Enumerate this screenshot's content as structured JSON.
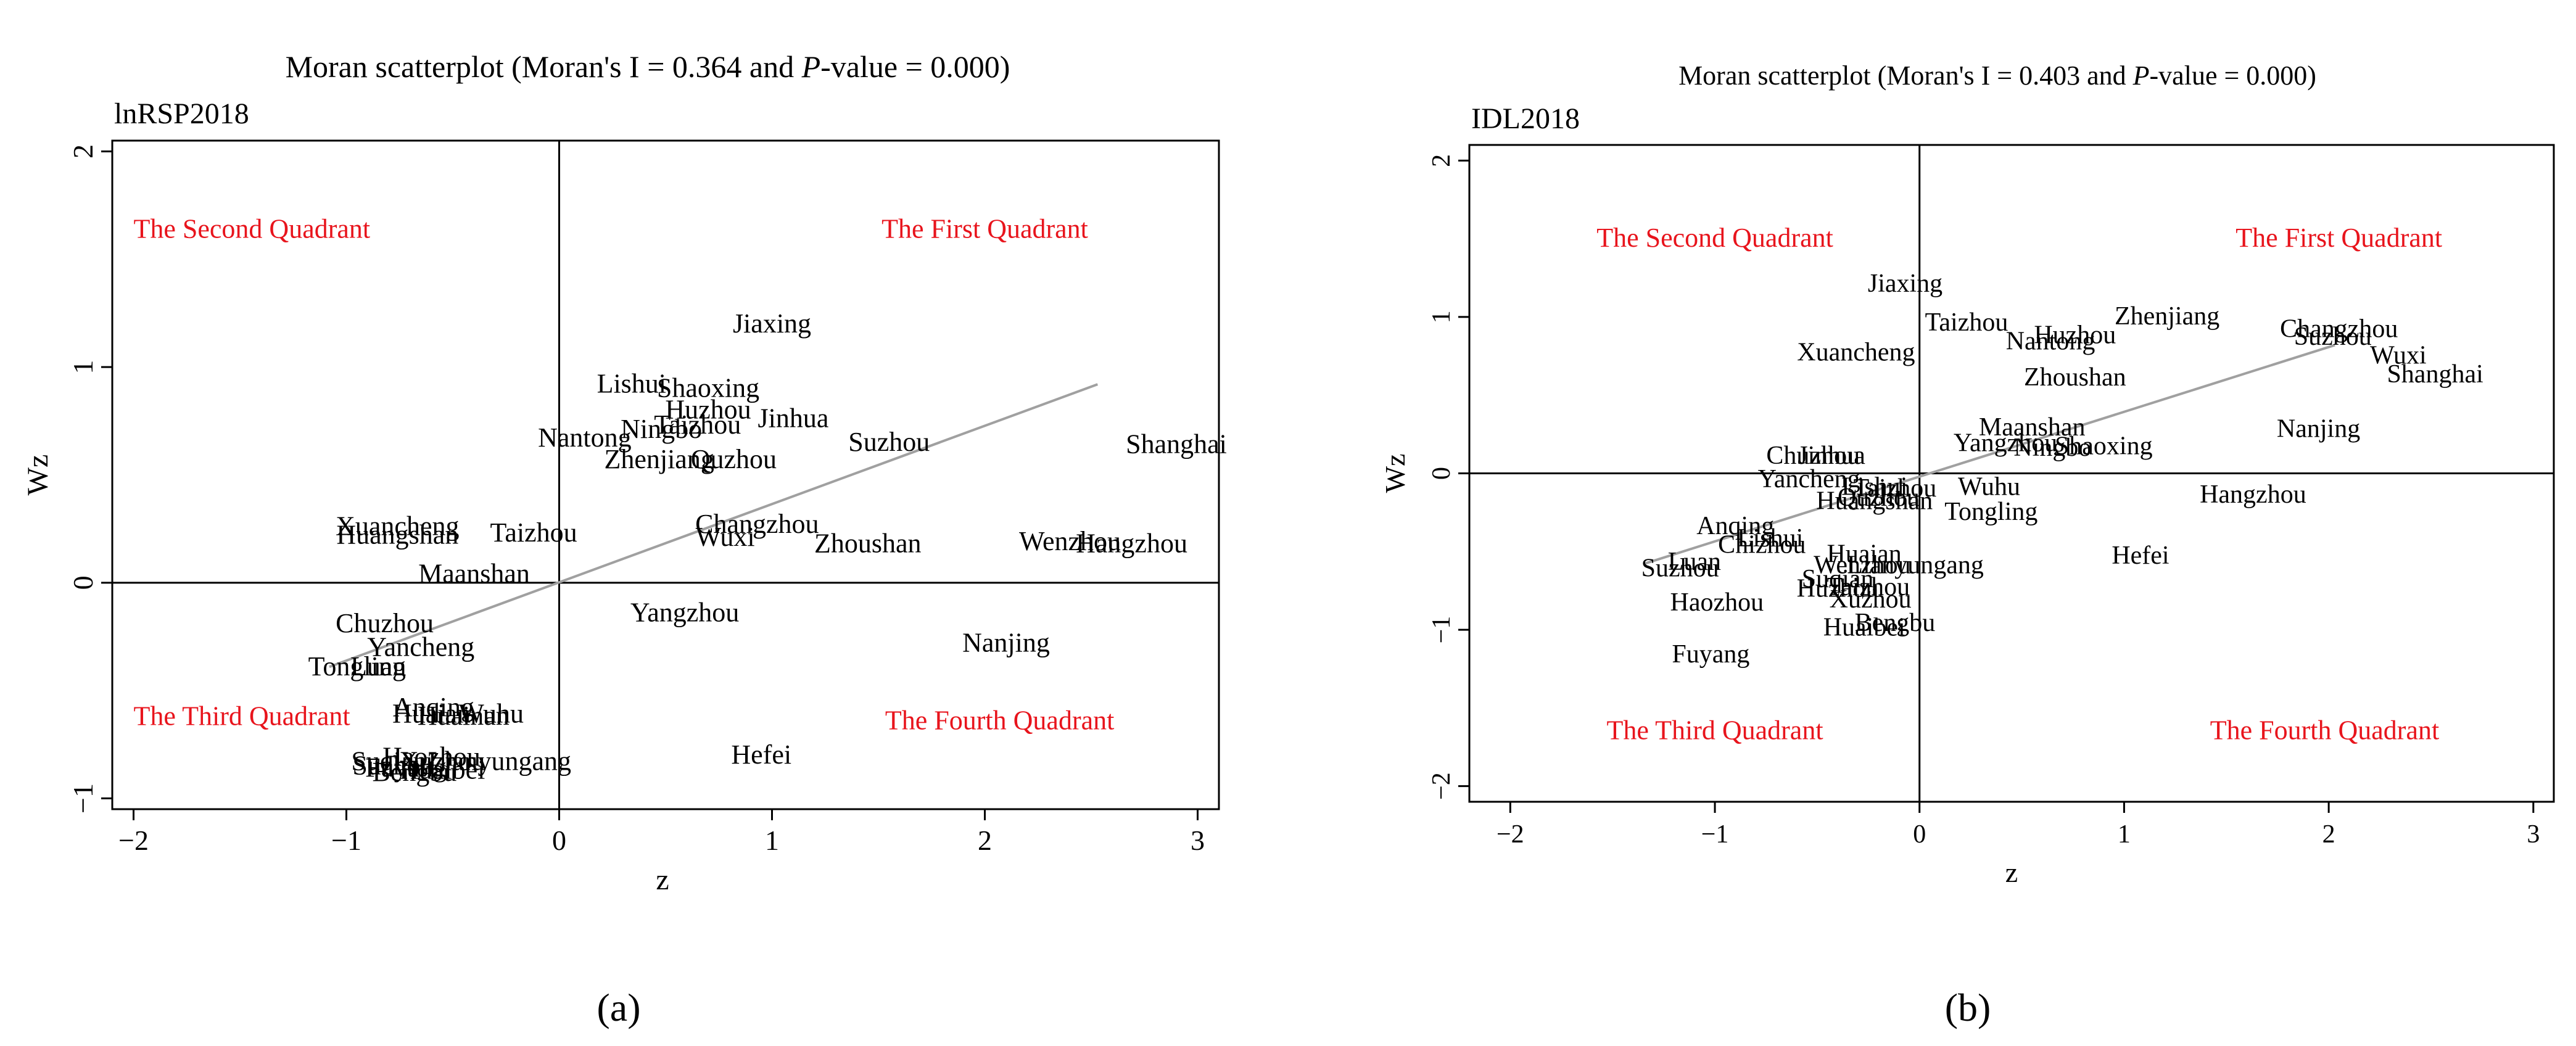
{
  "chart_data": [
    {
      "type": "scatter",
      "panel_label": "(a)",
      "title": "Moran scatterplot (Moran's I = 0.364 and P-value = 0.000)",
      "title_parts": {
        "before": "Moran scatterplot (Moran's I = 0.364 and ",
        "italic": "P",
        "after": "-value = 0.000)"
      },
      "variable": "lnRSP2018",
      "xlabel": "z",
      "ylabel": "Wz",
      "xlim": [
        -2.1,
        3.1
      ],
      "ylim": [
        -1.05,
        2.05
      ],
      "xticks": [
        -2,
        -1,
        0,
        1,
        2,
        3
      ],
      "xtick_labels": [
        "−2",
        "−1",
        "0",
        "1",
        "2",
        "3"
      ],
      "yticks": [
        -1,
        0,
        1,
        2
      ],
      "ytick_labels": [
        "−1",
        "0",
        "1",
        "2"
      ],
      "grid": false,
      "quadrant_labels": {
        "first": "The First Quadrant",
        "second": "The Second Quadrant",
        "third": "The Third Quadrant",
        "fourth": "The Fourth Quadrant"
      },
      "quadrant_label_color": "#e8141c",
      "fit_line": {
        "x": [
          -1.08,
          2.53
        ],
        "y": [
          -0.39,
          0.92
        ],
        "color": "#a0a0a0"
      },
      "points": [
        {
          "label": "Jiaxing",
          "x": 1.0,
          "y": 1.19
        },
        {
          "label": "Lishui",
          "x": 0.34,
          "y": 0.91
        },
        {
          "label": "Shaoxing",
          "x": 0.7,
          "y": 0.89
        },
        {
          "label": "Huzhou",
          "x": 0.7,
          "y": 0.79
        },
        {
          "label": "Taizhou",
          "x": 0.65,
          "y": 0.72
        },
        {
          "label": "Jinhua",
          "x": 1.1,
          "y": 0.75
        },
        {
          "label": "Ningbo",
          "x": 0.48,
          "y": 0.7
        },
        {
          "label": "Nantong",
          "x": 0.12,
          "y": 0.66
        },
        {
          "label": "Suzhou",
          "x": 1.55,
          "y": 0.64
        },
        {
          "label": "Shanghai",
          "x": 2.9,
          "y": 0.63
        },
        {
          "label": "Zhenjiang",
          "x": 0.47,
          "y": 0.56
        },
        {
          "label": "Quzhou",
          "x": 0.82,
          "y": 0.56
        },
        {
          "label": "Xuancheng",
          "x": -0.76,
          "y": 0.25
        },
        {
          "label": "Huangshan",
          "x": -0.76,
          "y": 0.21
        },
        {
          "label": "Taizhou",
          "x": -0.12,
          "y": 0.22
        },
        {
          "label": "Changzhou",
          "x": 0.93,
          "y": 0.26
        },
        {
          "label": "Wuxi",
          "x": 0.78,
          "y": 0.2
        },
        {
          "label": "Zhoushan",
          "x": 1.45,
          "y": 0.17
        },
        {
          "label": "Wenzhou",
          "x": 2.4,
          "y": 0.18
        },
        {
          "label": "Hangzhou",
          "x": 2.69,
          "y": 0.17
        },
        {
          "label": "Maanshan",
          "x": -0.4,
          "y": 0.03
        },
        {
          "label": "Yangzhou",
          "x": 0.59,
          "y": -0.15
        },
        {
          "label": "Chuzhou",
          "x": -0.82,
          "y": -0.2
        },
        {
          "label": "Yancheng",
          "x": -0.65,
          "y": -0.31
        },
        {
          "label": "Tongling",
          "x": -0.95,
          "y": -0.4
        },
        {
          "label": "Luan",
          "x": -0.85,
          "y": -0.4
        },
        {
          "label": "Nanjing",
          "x": 2.1,
          "y": -0.29
        },
        {
          "label": "Anqing",
          "x": -0.59,
          "y": -0.59
        },
        {
          "label": "Huaian",
          "x": -0.6,
          "y": -0.62
        },
        {
          "label": "Wuhu",
          "x": -0.32,
          "y": -0.62
        },
        {
          "label": "Huainan",
          "x": -0.45,
          "y": -0.63
        },
        {
          "label": "Hefei",
          "x": 0.95,
          "y": -0.81
        },
        {
          "label": "Lianyungang",
          "x": -0.28,
          "y": -0.84
        },
        {
          "label": "Suqian",
          "x": -0.8,
          "y": -0.84
        },
        {
          "label": "Suzhou",
          "x": -0.78,
          "y": -0.86
        },
        {
          "label": "Haozhou",
          "x": -0.6,
          "y": -0.82
        },
        {
          "label": "Xuzhou",
          "x": -0.55,
          "y": -0.84
        },
        {
          "label": "Fuyang",
          "x": -0.72,
          "y": -0.87
        },
        {
          "label": "Bengbu",
          "x": -0.68,
          "y": -0.89
        },
        {
          "label": "Huaibei",
          "x": -0.55,
          "y": -0.88
        }
      ]
    },
    {
      "type": "scatter",
      "panel_label": "(b)",
      "title": "Moran scatterplot (Moran's I = 0.403 and P-value = 0.000)",
      "title_parts": {
        "before": "Moran scatterplot (Moran's I = 0.403 and ",
        "italic": "P",
        "after": "-value = 0.000)"
      },
      "variable": "IDL2018",
      "xlabel": "z",
      "ylabel": "Wz",
      "xlim": [
        -2.2,
        3.1
      ],
      "ylim": [
        -2.1,
        2.1
      ],
      "xticks": [
        -2,
        -1,
        0,
        1,
        2,
        3
      ],
      "xtick_labels": [
        "−2",
        "−1",
        "0",
        "1",
        "2",
        "3"
      ],
      "yticks": [
        -2,
        -1,
        0,
        1,
        2
      ],
      "ytick_labels": [
        "−2",
        "−1",
        "0",
        "1",
        "2"
      ],
      "grid": false,
      "quadrant_labels": {
        "first": "The First Quadrant",
        "second": "The Second Quadrant",
        "third": "The Third Quadrant",
        "fourth": "The Fourth Quadrant"
      },
      "quadrant_label_color": "#e8141c",
      "fit_line": {
        "x": [
          -1.35,
          2.03
        ],
        "y": [
          -0.58,
          0.82
        ],
        "color": "#a0a0a0"
      },
      "points": [
        {
          "label": "Jiaxing",
          "x": -0.07,
          "y": 1.2
        },
        {
          "label": "Zhenjiang",
          "x": 1.21,
          "y": 0.99
        },
        {
          "label": "Taizhou",
          "x": 0.23,
          "y": 0.95
        },
        {
          "label": "Huzhou",
          "x": 0.76,
          "y": 0.87
        },
        {
          "label": "Changzhou",
          "x": 2.05,
          "y": 0.91
        },
        {
          "label": "Suzhou",
          "x": 2.02,
          "y": 0.86
        },
        {
          "label": "Nantong",
          "x": 0.64,
          "y": 0.83
        },
        {
          "label": "Xuancheng",
          "x": -0.31,
          "y": 0.76
        },
        {
          "label": "Wuxi",
          "x": 2.34,
          "y": 0.74
        },
        {
          "label": "Shanghai",
          "x": 2.52,
          "y": 0.62
        },
        {
          "label": "Zhoushan",
          "x": 0.76,
          "y": 0.6
        },
        {
          "label": "Nanjing",
          "x": 1.95,
          "y": 0.27
        },
        {
          "label": "Maanshan",
          "x": 0.55,
          "y": 0.28
        },
        {
          "label": "Yangzhou",
          "x": 0.42,
          "y": 0.18
        },
        {
          "label": "Ningbo",
          "x": 0.65,
          "y": 0.15
        },
        {
          "label": "Shaoxing",
          "x": 0.9,
          "y": 0.16
        },
        {
          "label": "Chuzhou",
          "x": -0.52,
          "y": 0.1
        },
        {
          "label": "Jinhua",
          "x": -0.43,
          "y": 0.1
        },
        {
          "label": "Yancheng",
          "x": -0.54,
          "y": -0.05
        },
        {
          "label": "Lishui",
          "x": -0.22,
          "y": -0.1
        },
        {
          "label": "Taizhou",
          "x": -0.12,
          "y": -0.11
        },
        {
          "label": "Quzhou",
          "x": -0.2,
          "y": -0.17
        },
        {
          "label": "Huangshan",
          "x": -0.22,
          "y": -0.19
        },
        {
          "label": "Wuhu",
          "x": 0.34,
          "y": -0.1
        },
        {
          "label": "Hangzhou",
          "x": 1.63,
          "y": -0.15
        },
        {
          "label": "Tongling",
          "x": 0.35,
          "y": -0.26
        },
        {
          "label": "Anqing",
          "x": -0.9,
          "y": -0.35
        },
        {
          "label": "Lishui",
          "x": -0.73,
          "y": -0.43
        },
        {
          "label": "Chizhou",
          "x": -0.77,
          "y": -0.47
        },
        {
          "label": "Hefei",
          "x": 1.08,
          "y": -0.54
        },
        {
          "label": "Huaian",
          "x": -0.27,
          "y": -0.53
        },
        {
          "label": "Luan",
          "x": -1.1,
          "y": -0.58
        },
        {
          "label": "Wenzhou",
          "x": -0.28,
          "y": -0.6
        },
        {
          "label": "Lianyungang",
          "x": -0.02,
          "y": -0.6
        },
        {
          "label": "Suzhou",
          "x": -1.17,
          "y": -0.62
        },
        {
          "label": "Suqian",
          "x": -0.4,
          "y": -0.69
        },
        {
          "label": "Huzhou",
          "x": -0.4,
          "y": -0.75
        },
        {
          "label": "Taizhou",
          "x": -0.25,
          "y": -0.74
        },
        {
          "label": "Haozhou",
          "x": -0.99,
          "y": -0.84
        },
        {
          "label": "Xuzhou",
          "x": -0.24,
          "y": -0.82
        },
        {
          "label": "Bengbu",
          "x": -0.12,
          "y": -0.97
        },
        {
          "label": "Huaibei",
          "x": -0.27,
          "y": -1.0
        },
        {
          "label": "Fuyang",
          "x": -1.02,
          "y": -1.17
        }
      ]
    }
  ]
}
